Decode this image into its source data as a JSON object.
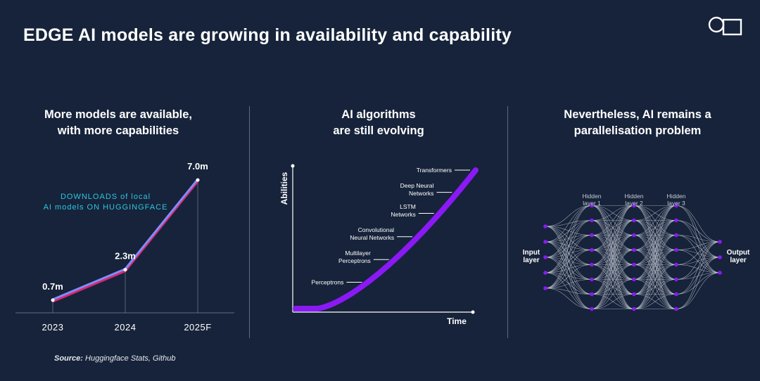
{
  "slide": {
    "title": "EDGE AI models are growing in availability and capability",
    "logo_icon": "circle-square-logo-icon"
  },
  "panels": {
    "left": {
      "title_line1": "More models are available,",
      "title_line2": "with more capabilities"
    },
    "middle": {
      "title_line1": "AI algorithms",
      "title_line2": "are still evolving"
    },
    "right": {
      "title_line1": "Nevertheless, AI remains a",
      "title_line2": "parallelisation problem"
    }
  },
  "colors": {
    "background": "#16233a",
    "accent_cyan": "#2fc6e0",
    "accent_purple": "#8a19f5",
    "line_pink": "#d9286e",
    "line_blue": "#7e8cff"
  },
  "chart_data": [
    {
      "type": "line",
      "categories": [
        "2023",
        "2024",
        "2025F"
      ],
      "values": [
        0.7,
        2.3,
        7.0
      ],
      "data_labels": [
        "0.7m",
        "2.3m",
        "7.0m"
      ],
      "annotation_line1": "DOWNLOADS of local",
      "annotation_line2": "AI models ON HUGGINGFACE",
      "ylim": [
        0,
        8
      ]
    },
    {
      "type": "line",
      "xlabel": "Time",
      "ylabel": "Abilities",
      "curve": "exponential-like growth",
      "annotations": [
        {
          "label": [
            "Perceptrons"
          ],
          "t": 0.4
        },
        {
          "label": [
            "Multilayer",
            "Perceptrons"
          ],
          "t": 0.55
        },
        {
          "label": [
            "Convolutional",
            "Neural Networks"
          ],
          "t": 0.68
        },
        {
          "label": [
            "LSTM",
            "Networks"
          ],
          "t": 0.8
        },
        {
          "label": [
            "Deep Neural",
            "Networks"
          ],
          "t": 0.9
        },
        {
          "label": [
            "Transformers"
          ],
          "t": 1.0
        }
      ]
    }
  ],
  "network": {
    "input_label_line1": "Input",
    "input_label_line2": "layer",
    "output_label_line1": "Output",
    "output_label_line2": "layer",
    "hidden_layers": [
      {
        "line1": "Hidden",
        "line2": "layer 1"
      },
      {
        "line1": "Hidden",
        "line2": "layer 2"
      },
      {
        "line1": "Hidden",
        "line2": "layer 3"
      }
    ],
    "layer_sizes": [
      5,
      8,
      8,
      8,
      3
    ]
  },
  "source": {
    "label": "Source:",
    "text": "Huggingface Stats, Github"
  }
}
